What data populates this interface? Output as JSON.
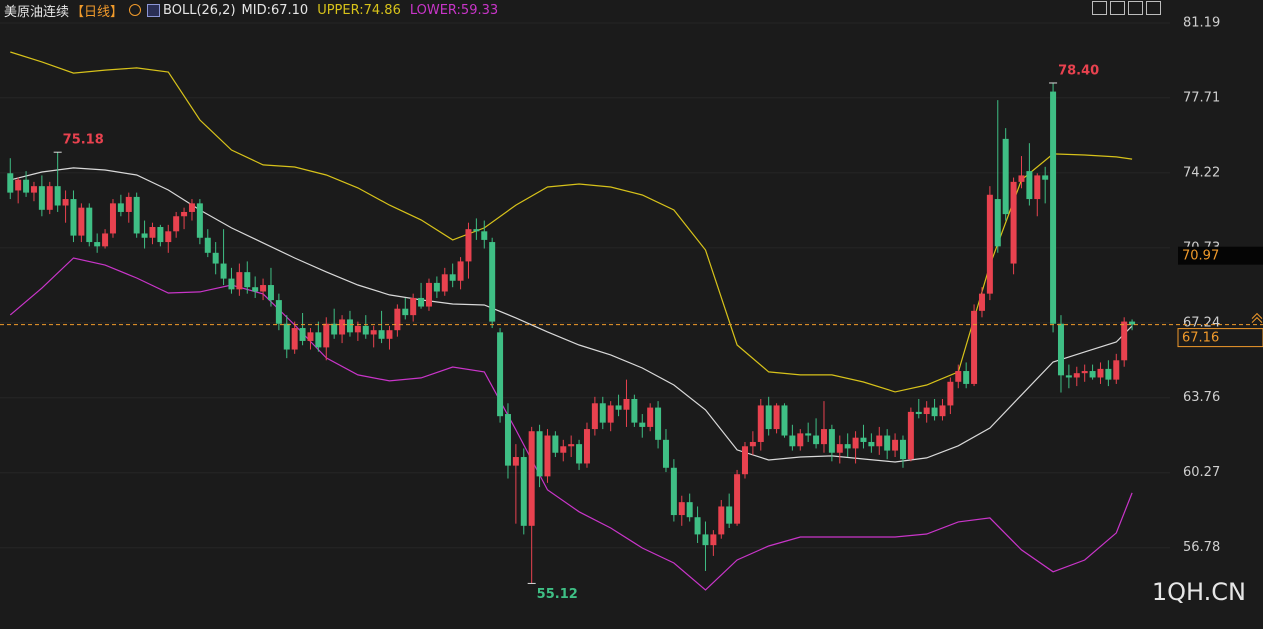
{
  "chart_data": {
    "type": "candlestick",
    "title": "美原油连续",
    "period": "【日线】",
    "indicator": "BOLL(26,2)",
    "watermark": "1QH.CN",
    "up_color": "#e8424f",
    "down_color": "#3fbf85",
    "grid": true,
    "xlim": [
      -1.3,
      146.8
    ],
    "ylim": [
      53.0,
      82.26
    ],
    "yticks": [
      81.19,
      77.71,
      74.22,
      70.73,
      67.24,
      63.76,
      60.27,
      56.78
    ],
    "current_price": 67.16,
    "marker_price": 70.97,
    "annotations": [
      {
        "value": 75.18,
        "x": 6
      },
      {
        "value": 78.4,
        "label": "78.40",
        "x": 132
      },
      {
        "value": 55.12,
        "x": 66
      }
    ],
    "ohlc": [
      [
        74.2,
        74.9,
        73.0,
        73.3
      ],
      [
        73.4,
        74.0,
        72.8,
        73.9
      ],
      [
        73.9,
        74.3,
        73.1,
        73.3
      ],
      [
        73.3,
        73.8,
        72.9,
        73.6
      ],
      [
        73.6,
        74.1,
        72.2,
        72.5
      ],
      [
        72.5,
        73.8,
        72.3,
        73.6
      ],
      [
        73.6,
        75.18,
        72.4,
        72.7
      ],
      [
        72.7,
        73.4,
        71.9,
        73.0
      ],
      [
        73.0,
        73.4,
        71.0,
        71.3
      ],
      [
        71.3,
        72.8,
        71.0,
        72.6
      ],
      [
        72.6,
        72.8,
        70.8,
        71.0
      ],
      [
        71.0,
        71.4,
        70.5,
        70.8
      ],
      [
        70.8,
        71.6,
        70.7,
        71.4
      ],
      [
        71.4,
        73.0,
        71.2,
        72.8
      ],
      [
        72.8,
        73.2,
        72.2,
        72.4
      ],
      [
        72.4,
        73.3,
        71.9,
        73.1
      ],
      [
        73.1,
        73.3,
        71.2,
        71.4
      ],
      [
        71.4,
        72.0,
        70.7,
        71.2
      ],
      [
        71.2,
        71.9,
        70.9,
        71.7
      ],
      [
        71.7,
        71.8,
        70.8,
        71.0
      ],
      [
        71.0,
        71.8,
        70.5,
        71.5
      ],
      [
        71.5,
        72.4,
        71.2,
        72.2
      ],
      [
        72.2,
        72.6,
        71.6,
        72.4
      ],
      [
        72.4,
        73.0,
        72.0,
        72.8
      ],
      [
        72.8,
        73.0,
        70.9,
        71.2
      ],
      [
        71.2,
        71.6,
        70.3,
        70.5
      ],
      [
        70.5,
        71.0,
        69.5,
        70.0
      ],
      [
        70.0,
        71.6,
        69.0,
        69.3
      ],
      [
        69.3,
        69.8,
        68.6,
        68.8
      ],
      [
        68.8,
        70.0,
        68.5,
        69.6
      ],
      [
        69.6,
        70.1,
        68.6,
        68.9
      ],
      [
        68.9,
        69.4,
        68.4,
        68.7
      ],
      [
        68.7,
        69.3,
        68.3,
        69.0
      ],
      [
        69.0,
        69.8,
        68.0,
        68.3
      ],
      [
        68.3,
        68.6,
        66.9,
        67.2
      ],
      [
        67.2,
        67.6,
        65.6,
        66.0
      ],
      [
        66.0,
        67.3,
        65.8,
        67.0
      ],
      [
        67.0,
        67.7,
        66.2,
        66.4
      ],
      [
        66.4,
        67.0,
        66.0,
        66.8
      ],
      [
        66.8,
        67.3,
        65.9,
        66.1
      ],
      [
        66.1,
        67.5,
        65.5,
        67.2
      ],
      [
        67.2,
        67.9,
        66.5,
        66.7
      ],
      [
        66.7,
        67.6,
        66.3,
        67.4
      ],
      [
        67.4,
        67.8,
        66.6,
        66.8
      ],
      [
        66.8,
        67.3,
        66.4,
        67.1
      ],
      [
        67.1,
        67.6,
        66.5,
        66.7
      ],
      [
        66.7,
        67.1,
        66.1,
        66.9
      ],
      [
        66.9,
        67.8,
        66.3,
        66.5
      ],
      [
        66.5,
        67.1,
        66.0,
        66.9
      ],
      [
        66.9,
        68.1,
        66.6,
        67.9
      ],
      [
        67.9,
        68.4,
        67.4,
        67.6
      ],
      [
        67.6,
        68.6,
        67.3,
        68.4
      ],
      [
        68.4,
        69.1,
        67.9,
        68.0
      ],
      [
        68.0,
        69.3,
        67.8,
        69.1
      ],
      [
        69.1,
        69.4,
        68.4,
        68.7
      ],
      [
        68.7,
        69.8,
        68.5,
        69.5
      ],
      [
        69.5,
        70.0,
        68.9,
        69.2
      ],
      [
        69.2,
        70.3,
        68.8,
        70.1
      ],
      [
        70.1,
        71.9,
        69.3,
        71.6
      ],
      [
        71.6,
        72.1,
        71.1,
        71.5
      ],
      [
        71.5,
        72.0,
        70.7,
        71.1
      ],
      [
        71.0,
        71.2,
        67.0,
        67.3
      ],
      [
        66.8,
        67.0,
        62.6,
        62.9
      ],
      [
        63.0,
        63.5,
        60.0,
        60.6
      ],
      [
        60.6,
        61.6,
        57.9,
        61.0
      ],
      [
        61.0,
        61.4,
        57.4,
        57.8
      ],
      [
        57.8,
        62.4,
        55.12,
        62.2
      ],
      [
        62.2,
        62.5,
        59.6,
        60.1
      ],
      [
        60.1,
        62.3,
        59.8,
        62.0
      ],
      [
        62.0,
        62.2,
        61.0,
        61.2
      ],
      [
        61.2,
        61.8,
        60.8,
        61.5
      ],
      [
        61.5,
        62.0,
        61.0,
        61.6
      ],
      [
        61.6,
        61.8,
        60.4,
        60.7
      ],
      [
        60.7,
        62.6,
        60.5,
        62.3
      ],
      [
        62.3,
        63.8,
        62.0,
        63.5
      ],
      [
        63.5,
        63.8,
        62.3,
        62.6
      ],
      [
        62.6,
        63.6,
        62.2,
        63.4
      ],
      [
        63.4,
        63.9,
        62.9,
        63.2
      ],
      [
        63.2,
        64.6,
        62.4,
        63.7
      ],
      [
        63.7,
        63.9,
        62.4,
        62.6
      ],
      [
        62.6,
        63.0,
        61.9,
        62.4
      ],
      [
        62.4,
        63.5,
        62.2,
        63.3
      ],
      [
        63.3,
        63.6,
        61.4,
        61.8
      ],
      [
        61.8,
        62.3,
        60.3,
        60.5
      ],
      [
        60.5,
        60.9,
        58.0,
        58.3
      ],
      [
        58.3,
        59.2,
        57.8,
        58.9
      ],
      [
        58.9,
        59.3,
        58.0,
        58.2
      ],
      [
        58.2,
        58.7,
        57.0,
        57.4
      ],
      [
        57.4,
        58.0,
        55.7,
        56.9
      ],
      [
        56.9,
        57.6,
        56.4,
        57.4
      ],
      [
        57.4,
        59.0,
        57.2,
        58.7
      ],
      [
        58.7,
        59.3,
        57.7,
        57.9
      ],
      [
        57.9,
        60.4,
        57.8,
        60.2
      ],
      [
        60.2,
        61.7,
        60.0,
        61.5
      ],
      [
        61.5,
        62.2,
        61.1,
        61.7
      ],
      [
        61.7,
        63.7,
        61.3,
        63.4
      ],
      [
        63.4,
        63.8,
        62.0,
        62.3
      ],
      [
        62.3,
        63.5,
        62.1,
        63.4
      ],
      [
        63.4,
        63.5,
        61.9,
        62.0
      ],
      [
        62.0,
        62.5,
        61.3,
        61.5
      ],
      [
        61.5,
        62.3,
        61.3,
        62.1
      ],
      [
        62.1,
        62.6,
        61.7,
        62.0
      ],
      [
        62.0,
        62.8,
        61.4,
        61.6
      ],
      [
        61.6,
        63.6,
        61.2,
        62.3
      ],
      [
        62.3,
        62.5,
        60.8,
        61.2
      ],
      [
        61.2,
        62.0,
        60.7,
        61.6
      ],
      [
        61.6,
        62.1,
        61.0,
        61.4
      ],
      [
        61.4,
        62.2,
        60.7,
        61.9
      ],
      [
        61.9,
        62.5,
        61.4,
        61.7
      ],
      [
        61.7,
        62.1,
        61.2,
        61.5
      ],
      [
        61.5,
        62.4,
        61.1,
        62.0
      ],
      [
        62.0,
        62.3,
        60.9,
        61.3
      ],
      [
        61.3,
        62.1,
        61.0,
        61.8
      ],
      [
        61.8,
        62.0,
        60.5,
        60.9
      ],
      [
        60.9,
        63.3,
        60.8,
        63.1
      ],
      [
        63.1,
        63.7,
        62.8,
        63.0
      ],
      [
        63.0,
        63.6,
        62.6,
        63.3
      ],
      [
        63.3,
        63.7,
        62.7,
        62.9
      ],
      [
        62.9,
        63.7,
        62.7,
        63.4
      ],
      [
        63.4,
        64.7,
        63.0,
        64.5
      ],
      [
        64.5,
        65.3,
        64.2,
        65.0
      ],
      [
        65.0,
        65.4,
        64.2,
        64.4
      ],
      [
        64.4,
        68.1,
        64.3,
        67.8
      ],
      [
        67.8,
        68.9,
        67.5,
        68.6
      ],
      [
        68.6,
        73.6,
        68.3,
        73.2
      ],
      [
        73.0,
        77.6,
        70.5,
        70.8
      ],
      [
        75.8,
        76.3,
        72.0,
        72.3
      ],
      [
        70.0,
        74.0,
        69.5,
        73.8
      ],
      [
        73.8,
        75.0,
        73.5,
        74.1
      ],
      [
        74.3,
        75.6,
        72.7,
        73.0
      ],
      [
        73.0,
        74.2,
        72.2,
        74.1
      ],
      [
        74.1,
        74.5,
        72.8,
        73.9
      ],
      [
        78.0,
        78.4,
        66.8,
        67.2
      ],
      [
        67.2,
        67.6,
        64.0,
        64.8
      ],
      [
        64.8,
        65.3,
        64.2,
        64.7
      ],
      [
        64.7,
        65.2,
        64.3,
        64.9
      ],
      [
        64.9,
        65.3,
        64.5,
        65.0
      ],
      [
        65.0,
        65.3,
        64.6,
        64.7
      ],
      [
        64.7,
        65.4,
        64.4,
        65.1
      ],
      [
        65.1,
        65.5,
        64.3,
        64.6
      ],
      [
        64.6,
        65.8,
        64.4,
        65.5
      ],
      [
        65.5,
        67.5,
        65.2,
        67.3
      ],
      [
        67.3,
        67.4,
        66.9,
        67.16
      ]
    ],
    "lines": {
      "x": [
        0,
        4,
        8,
        12,
        16,
        20,
        24,
        28,
        32,
        36,
        40,
        44,
        48,
        52,
        56,
        60,
        64,
        68,
        72,
        76,
        80,
        84,
        88,
        92,
        96,
        100,
        104,
        108,
        112,
        116,
        120,
        124,
        128,
        132,
        136,
        140,
        142
      ],
      "series": [
        {
          "legend": "MID:67.10",
          "color": "#d9d9d9",
          "values": [
            73.89,
            74.26,
            74.45,
            74.35,
            74.12,
            73.42,
            72.49,
            71.66,
            70.96,
            70.26,
            69.61,
            69.0,
            68.54,
            68.31,
            68.12,
            68.07,
            67.47,
            66.82,
            66.21,
            65.75,
            65.14,
            64.35,
            63.19,
            61.33,
            60.86,
            61.0,
            61.05,
            60.91,
            60.77,
            60.96,
            61.52,
            62.35,
            63.89,
            65.42,
            65.89,
            66.35,
            67.1
          ]
        },
        {
          "legend": "UPPER:74.86",
          "color": "#d7c21a",
          "values": [
            79.84,
            79.38,
            78.86,
            79.0,
            79.1,
            78.91,
            76.68,
            75.28,
            74.59,
            74.49,
            74.12,
            73.52,
            72.72,
            72.03,
            71.1,
            71.66,
            72.72,
            73.56,
            73.7,
            73.56,
            73.19,
            72.49,
            70.63,
            66.21,
            64.96,
            64.82,
            64.82,
            64.49,
            64.03,
            64.35,
            64.96,
            69.93,
            73.89,
            75.1,
            75.05,
            74.96,
            74.86
          ]
        },
        {
          "legend": "LOWER:59.33",
          "color": "#c935c9",
          "values": [
            67.61,
            68.86,
            70.26,
            69.93,
            69.33,
            68.63,
            68.68,
            69.0,
            68.59,
            67.14,
            65.61,
            64.82,
            64.54,
            64.68,
            65.19,
            64.96,
            62.26,
            59.47,
            58.45,
            57.7,
            56.77,
            56.07,
            54.82,
            56.21,
            56.86,
            57.28,
            57.28,
            57.28,
            57.28,
            57.42,
            57.98,
            58.17,
            56.68,
            55.66,
            56.21,
            57.47,
            59.33
          ]
        }
      ]
    }
  }
}
